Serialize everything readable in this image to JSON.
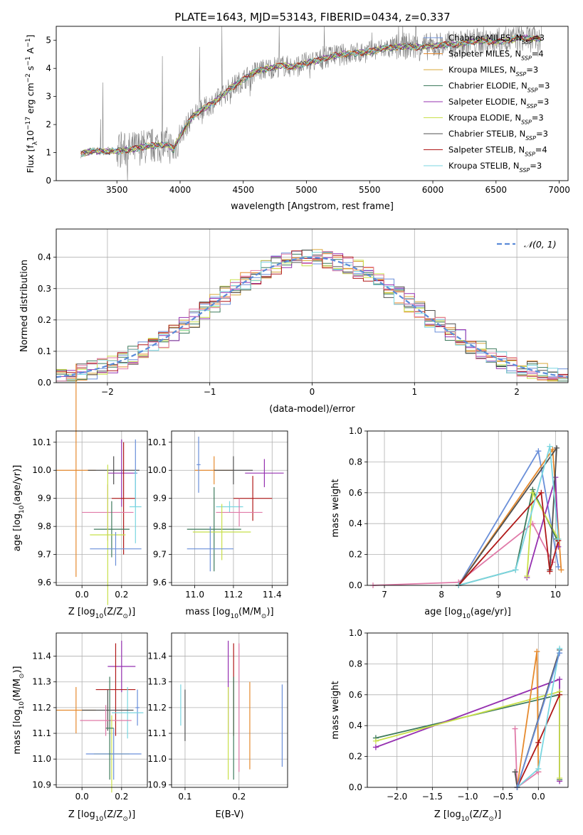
{
  "figure": {
    "title": "PLATE=1643, MJD=53143, FIBERID=0434, z=0.337"
  },
  "colors": {
    "chabrier_miles": "#6a8fd9",
    "salpeter_miles": "#e68a2e",
    "kroupa_miles": "#d9a83a",
    "chabrier_elodie": "#3d7a5c",
    "salpeter_elodie": "#9530b0",
    "kroupa_elodie": "#c8e04a",
    "chabrier_stelib": "#505050",
    "salpeter_stelib": "#b01818",
    "kroupa_stelib": "#7ad6e0",
    "extra_pink": "#e07aa8",
    "data_gray": "#808080",
    "gaussian": "#5b8bd9"
  },
  "chart_data": [
    {
      "id": "spectrum",
      "type": "line",
      "xlabel": "wavelength [Angstrom, rest frame]",
      "ylabel_parts": {
        "pre": "Flux [f",
        "sub1": "λ",
        "mid": "10",
        "sup1": "−17",
        "mid2": " erg cm",
        "sup2": "−2",
        "mid3": " s",
        "sup3": "−1",
        "mid4": " A",
        "sup4": "−1",
        "post": "]"
      },
      "xlim": [
        3020,
        7070
      ],
      "ylim": [
        0,
        5.5
      ],
      "xticks": [
        3500,
        4000,
        4500,
        5000,
        5500,
        6000,
        6500,
        7000
      ],
      "yticks": [
        0,
        1,
        2,
        3,
        4,
        5
      ],
      "continuum_knots": [
        [
          3215,
          0.95
        ],
        [
          3300,
          1.05
        ],
        [
          3400,
          1.05
        ],
        [
          3500,
          1.05
        ],
        [
          3600,
          1.1
        ],
        [
          3700,
          1.2
        ],
        [
          3800,
          1.25
        ],
        [
          3900,
          1.3
        ],
        [
          3950,
          1.1
        ],
        [
          4000,
          1.6
        ],
        [
          4100,
          2.3
        ],
        [
          4200,
          2.6
        ],
        [
          4300,
          2.9
        ],
        [
          4400,
          3.3
        ],
        [
          4500,
          3.6
        ],
        [
          4600,
          3.9
        ],
        [
          4700,
          4.0
        ],
        [
          4800,
          4.1
        ],
        [
          4900,
          4.05
        ],
        [
          5000,
          4.2
        ],
        [
          5100,
          4.3
        ],
        [
          5200,
          4.45
        ],
        [
          5300,
          4.5
        ],
        [
          5400,
          4.55
        ],
        [
          5500,
          4.6
        ],
        [
          5600,
          4.7
        ],
        [
          5700,
          4.75
        ],
        [
          5800,
          4.8
        ],
        [
          5900,
          4.75
        ],
        [
          6000,
          4.8
        ],
        [
          6100,
          4.85
        ],
        [
          6200,
          4.85
        ],
        [
          6300,
          4.95
        ],
        [
          6400,
          5.0
        ],
        [
          6500,
          4.95
        ],
        [
          6600,
          5.0
        ],
        [
          6700,
          5.1
        ],
        [
          6800,
          5.05
        ]
      ],
      "legend": [
        {
          "key": "chabrier_miles",
          "name": "Chabrier MILES",
          "nssp": "3"
        },
        {
          "key": "salpeter_miles",
          "name": "Salpeter MILES",
          "nssp": "4"
        },
        {
          "key": "kroupa_miles",
          "name": "Kroupa MILES",
          "nssp": "3"
        },
        {
          "key": "chabrier_elodie",
          "name": "Chabrier ELODIE",
          "nssp": "3"
        },
        {
          "key": "salpeter_elodie",
          "name": "Salpeter ELODIE",
          "nssp": "3"
        },
        {
          "key": "kroupa_elodie",
          "name": "Kroupa ELODIE",
          "nssp": "3"
        },
        {
          "key": "chabrier_stelib",
          "name": "Chabrier STELIB",
          "nssp": "3"
        },
        {
          "key": "salpeter_stelib",
          "name": "Salpeter STELIB",
          "nssp": "4"
        },
        {
          "key": "kroupa_stelib",
          "name": "Kroupa STELIB",
          "nssp": "3"
        }
      ],
      "legend_placement": "top-right"
    },
    {
      "id": "residuals",
      "type": "histogram",
      "xlabel": "(data-model)/error",
      "ylabel": "Normed distribution",
      "xlim": [
        -2.5,
        2.5
      ],
      "ylim": [
        0,
        0.49
      ],
      "xticks": [
        -2,
        -1,
        0,
        1,
        2
      ],
      "yticks": [
        0.0,
        0.1,
        0.2,
        0.3,
        0.4
      ],
      "grid": true,
      "legend": "𝒩(0, 1)",
      "legend_placement": "top-right",
      "bin_width": 0.1,
      "bin_start": -2.5
    },
    {
      "id": "age_vs_Z",
      "type": "errorbar",
      "xlabel_parts": {
        "pre": "Z [log",
        "sub": "10",
        "post": "(Z/Z",
        "sub2": "⊙",
        "end": ")]"
      },
      "ylabel_parts": {
        "pre": "age  [log",
        "sub": "10",
        "post": "(age/yr)]"
      },
      "xlim": [
        -0.13,
        0.33
      ],
      "ylim": [
        9.59,
        10.14
      ],
      "xticks": [
        0.0,
        0.2
      ],
      "yticks": [
        9.6,
        9.7,
        9.8,
        9.9,
        10.0,
        10.1
      ],
      "points": [
        {
          "c": "salpeter_miles",
          "x": -0.03,
          "y": 10.0,
          "xe": 0.1,
          "ye": 0.38
        },
        {
          "c": "chabrier_stelib",
          "x": 0.16,
          "y": 10.0,
          "xe": 0.13,
          "ye": 0.05
        },
        {
          "c": "salpeter_elodie",
          "x": 0.2,
          "y": 9.99,
          "xe": 0.07,
          "ye": 0.12
        },
        {
          "c": "chabrier_miles",
          "x": 0.27,
          "y": 9.99,
          "xe": 0.01,
          "ye": 0.12
        },
        {
          "c": "salpeter_stelib",
          "x": 0.21,
          "y": 9.9,
          "xe": 0.06,
          "ye": 0.2
        },
        {
          "c": "kroupa_stelib",
          "x": 0.27,
          "y": 9.87,
          "xe": 0.03,
          "ye": 0.13
        },
        {
          "c": "extra_pink",
          "x": 0.13,
          "y": 9.85,
          "xe": 0.13,
          "ye": 0.1
        },
        {
          "c": "chabrier_elodie",
          "x": 0.15,
          "y": 9.79,
          "xe": 0.09,
          "ye": 0.1
        },
        {
          "c": "kroupa_elodie",
          "x": 0.13,
          "y": 9.77,
          "xe": 0.09,
          "ye": 0.25
        },
        {
          "c": "chabrier_miles",
          "x": 0.17,
          "y": 9.72,
          "xe": 0.13,
          "ye": 0.06
        }
      ]
    },
    {
      "id": "age_vs_mass",
      "type": "errorbar",
      "xlabel_parts": {
        "pre": "mass [log",
        "sub": "10",
        "post": "(M/M",
        "sub2": "⊙",
        "end": ")]"
      },
      "xlim": [
        10.88,
        11.48
      ],
      "ylim": [
        9.59,
        10.14
      ],
      "xticks": [
        11.0,
        11.2,
        11.4
      ],
      "yticks": [
        9.6,
        9.7,
        9.8,
        9.9,
        10.0,
        10.1
      ],
      "points": [
        {
          "c": "salpeter_miles",
          "x": 11.1,
          "y": 10.0,
          "xe": 0.1,
          "ye": 0.05
        },
        {
          "c": "chabrier_stelib",
          "x": 11.2,
          "y": 10.0,
          "xe": 0.1,
          "ye": 0.05
        },
        {
          "c": "salpeter_elodie",
          "x": 11.36,
          "y": 9.99,
          "xe": 0.1,
          "ye": 0.05
        },
        {
          "c": "chabrier_miles",
          "x": 11.02,
          "y": 10.02,
          "xe": 0.01,
          "ye": 0.1
        },
        {
          "c": "salpeter_stelib",
          "x": 11.3,
          "y": 9.9,
          "xe": 0.1,
          "ye": 0.08
        },
        {
          "c": "kroupa_stelib",
          "x": 11.18,
          "y": 9.87,
          "xe": 0.07,
          "ye": 0.02
        },
        {
          "c": "extra_pink",
          "x": 11.23,
          "y": 9.85,
          "xe": 0.12,
          "ye": 0.05
        },
        {
          "c": "chabrier_elodie",
          "x": 11.1,
          "y": 9.79,
          "xe": 0.14,
          "ye": 0.15
        },
        {
          "c": "kroupa_elodie",
          "x": 11.14,
          "y": 9.78,
          "xe": 0.15,
          "ye": 0.1
        },
        {
          "c": "chabrier_miles",
          "x": 11.08,
          "y": 9.72,
          "xe": 0.12,
          "ye": 0.08
        }
      ]
    },
    {
      "id": "weight_vs_age",
      "type": "line",
      "xlabel_parts": {
        "pre": "age  [log",
        "sub": "10",
        "post": "(age/yr)]"
      },
      "ylabel": "mass weight",
      "xlim": [
        6.7,
        10.22
      ],
      "ylim": [
        0,
        1.0
      ],
      "xticks": [
        7,
        8,
        9,
        10
      ],
      "yticks": [
        0.0,
        0.2,
        0.4,
        0.6,
        0.8,
        1.0
      ],
      "grid": true,
      "series": [
        {
          "c": "chabrier_miles",
          "pts": [
            [
              8.3,
              0.0
            ],
            [
              9.7,
              0.87
            ],
            [
              10.05,
              0.12
            ]
          ]
        },
        {
          "c": "salpeter_miles",
          "pts": [
            [
              8.3,
              0.0
            ],
            [
              9.95,
              0.88
            ],
            [
              10.1,
              0.1
            ]
          ]
        },
        {
          "c": "extra_pink",
          "pts": [
            [
              6.8,
              0.0
            ],
            [
              8.3,
              0.02
            ],
            [
              9.6,
              0.4
            ],
            [
              9.95,
              0.15
            ]
          ]
        },
        {
          "c": "chabrier_elodie",
          "pts": [
            [
              8.3,
              0.0
            ],
            [
              9.3,
              0.1
            ],
            [
              9.6,
              0.62
            ],
            [
              10.02,
              0.3
            ]
          ]
        },
        {
          "c": "salpeter_elodie",
          "pts": [
            [
              9.5,
              0.05
            ],
            [
              10.0,
              0.7
            ],
            [
              10.05,
              0.25
            ]
          ]
        },
        {
          "c": "kroupa_elodie",
          "pts": [
            [
              9.5,
              0.06
            ],
            [
              9.6,
              0.6
            ],
            [
              10.05,
              0.3
            ]
          ]
        },
        {
          "c": "chabrier_stelib",
          "pts": [
            [
              8.3,
              0.0
            ],
            [
              10.02,
              0.89
            ],
            [
              9.9,
              0.1
            ]
          ]
        },
        {
          "c": "salpeter_stelib",
          "pts": [
            [
              8.3,
              0.0
            ],
            [
              9.75,
              0.6
            ],
            [
              9.9,
              0.09
            ],
            [
              10.05,
              0.29
            ]
          ]
        },
        {
          "c": "kroupa_stelib",
          "pts": [
            [
              8.3,
              0.0
            ],
            [
              9.3,
              0.1
            ],
            [
              9.9,
              0.9
            ],
            [
              10.05,
              0.3
            ]
          ]
        }
      ]
    },
    {
      "id": "mass_vs_Z",
      "type": "errorbar",
      "xlabel_parts": {
        "pre": "Z [log",
        "sub": "10",
        "post": "(Z/Z",
        "sub2": "⊙",
        "end": ")]"
      },
      "ylabel_parts": {
        "pre": "mass [log",
        "sub": "10",
        "post": "(M/M",
        "sub2": "⊙",
        "end": ")]"
      },
      "xlim": [
        -0.13,
        0.33
      ],
      "ylim": [
        10.89,
        11.49
      ],
      "xticks": [
        0.0,
        0.2
      ],
      "yticks": [
        10.9,
        11.0,
        11.1,
        11.2,
        11.3,
        11.4
      ],
      "points": [
        {
          "c": "salpeter_elodie",
          "x": 0.2,
          "y": 11.36,
          "xe": 0.07,
          "ye": 0.1
        },
        {
          "c": "salpeter_stelib",
          "x": 0.17,
          "y": 11.27,
          "xe": 0.1,
          "ye": 0.18
        },
        {
          "c": "chabrier_miles",
          "x": 0.28,
          "y": 11.2,
          "xe": 0.01,
          "ye": 0.07
        },
        {
          "c": "kroupa_stelib",
          "x": 0.23,
          "y": 11.18,
          "xe": 0.08,
          "ye": 0.1
        },
        {
          "c": "salpeter_miles",
          "x": -0.03,
          "y": 11.19,
          "xe": 0.1,
          "ye": 0.09
        },
        {
          "c": "chabrier_stelib",
          "x": 0.13,
          "y": 11.19,
          "xe": 0.13,
          "ye": 0.08
        },
        {
          "c": "extra_pink",
          "x": 0.12,
          "y": 11.15,
          "xe": 0.13,
          "ye": 0.06
        },
        {
          "c": "kroupa_elodie",
          "x": 0.15,
          "y": 11.02,
          "xe": 0.09,
          "ye": 0.15
        },
        {
          "c": "chabrier_miles",
          "x": 0.16,
          "y": 11.02,
          "xe": 0.14,
          "ye": 0.1
        },
        {
          "c": "chabrier_elodie",
          "x": 0.14,
          "y": 11.12,
          "xe": 0.02,
          "ye": 0.2
        }
      ]
    },
    {
      "id": "mass_vs_ebv",
      "type": "errorbar",
      "xlabel": "E(B-V)",
      "xlim": [
        0.075,
        0.29
      ],
      "ylim": [
        10.89,
        11.49
      ],
      "xticks": [
        0.1,
        0.2
      ],
      "yticks": [
        10.9,
        11.0,
        11.1,
        11.2,
        11.3,
        11.4
      ],
      "points": [
        {
          "c": "kroupa_stelib",
          "x": 0.092,
          "y": 11.21,
          "xe": 0,
          "ye": 0.08
        },
        {
          "c": "chabrier_stelib",
          "x": 0.1,
          "y": 11.17,
          "xe": 0,
          "ye": 0.1
        },
        {
          "c": "salpeter_elodie",
          "x": 0.18,
          "y": 11.28,
          "xe": 0,
          "ye": 0.18
        },
        {
          "c": "salpeter_stelib",
          "x": 0.19,
          "y": 11.27,
          "xe": 0,
          "ye": 0.18
        },
        {
          "c": "kroupa_elodie",
          "x": 0.18,
          "y": 11.1,
          "xe": 0,
          "ye": 0.18
        },
        {
          "c": "chabrier_elodie",
          "x": 0.19,
          "y": 11.12,
          "xe": 0,
          "ye": 0.2
        },
        {
          "c": "extra_pink",
          "x": 0.2,
          "y": 11.2,
          "xe": 0,
          "ye": 0.25
        },
        {
          "c": "salpeter_miles",
          "x": 0.22,
          "y": 11.13,
          "xe": 0,
          "ye": 0.17
        },
        {
          "c": "chabrier_miles",
          "x": 0.28,
          "y": 11.13,
          "xe": 0,
          "ye": 0.16
        }
      ]
    },
    {
      "id": "weight_vs_Z",
      "type": "line",
      "xlabel_parts": {
        "pre": "Z [log",
        "sub": "10",
        "post": "(Z/Z",
        "sub2": "⊙",
        "end": ")]"
      },
      "ylabel": "mass weight",
      "xlim": [
        -2.42,
        0.42
      ],
      "ylim": [
        0,
        1.0
      ],
      "xticks": [
        -2.0,
        -1.5,
        -1.0,
        -0.5,
        0.0
      ],
      "yticks": [
        0.0,
        0.2,
        0.4,
        0.6,
        0.8,
        1.0
      ],
      "grid": true,
      "series": [
        {
          "c": "chabrier_elodie",
          "pts": [
            [
              -2.3,
              0.32
            ],
            [
              0.3,
              0.6
            ],
            [
              0.3,
              0.05
            ]
          ]
        },
        {
          "c": "salpeter_elodie",
          "pts": [
            [
              -2.3,
              0.26
            ],
            [
              0.3,
              0.7
            ],
            [
              0.3,
              0.04
            ]
          ]
        },
        {
          "c": "kroupa_elodie",
          "pts": [
            [
              -2.3,
              0.3
            ],
            [
              0.3,
              0.62
            ],
            [
              0.3,
              0.06
            ]
          ]
        },
        {
          "c": "salpeter_miles",
          "pts": [
            [
              -0.3,
              0.0
            ],
            [
              -0.02,
              0.88
            ],
            [
              0.0,
              0.1
            ]
          ]
        },
        {
          "c": "extra_pink",
          "pts": [
            [
              -0.33,
              0.38
            ],
            [
              -0.3,
              0.0
            ],
            [
              0.0,
              0.1
            ]
          ]
        },
        {
          "c": "chabrier_stelib",
          "pts": [
            [
              -0.33,
              0.1
            ],
            [
              -0.3,
              0.0
            ],
            [
              0.3,
              0.89
            ]
          ]
        },
        {
          "c": "salpeter_stelib",
          "pts": [
            [
              -0.3,
              0.0
            ],
            [
              0.0,
              0.29
            ],
            [
              0.3,
              0.6
            ]
          ]
        },
        {
          "c": "kroupa_stelib",
          "pts": [
            [
              -0.3,
              0.0
            ],
            [
              0.0,
              0.12
            ],
            [
              0.3,
              0.9
            ]
          ]
        },
        {
          "c": "chabrier_miles",
          "pts": [
            [
              -0.3,
              0.0
            ],
            [
              0.3,
              0.87
            ]
          ]
        }
      ]
    }
  ]
}
